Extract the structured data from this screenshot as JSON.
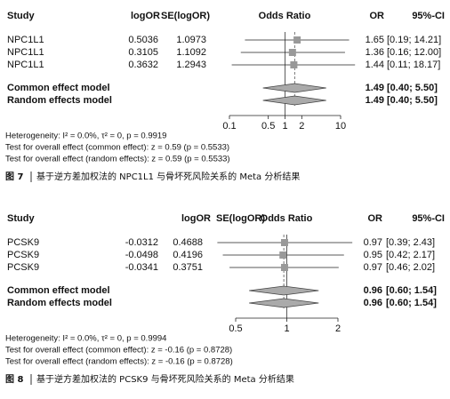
{
  "chart_data": [
    {
      "type": "forest",
      "columns": [
        "Study",
        "logOR",
        "SE(logOR)",
        "Odds Ratio",
        "OR",
        "95%-CI"
      ],
      "studies": [
        {
          "name": "NPC1L1",
          "logOR": 0.5036,
          "se": 1.0973,
          "or": 1.65,
          "ci": [
            0.19,
            14.21
          ],
          "ci_label": "[0.19; 14.21]"
        },
        {
          "name": "NPC1L1",
          "logOR": 0.3105,
          "se": 1.1092,
          "or": 1.36,
          "ci": [
            0.16,
            12
          ],
          "ci_label": "[0.16; 12.00]"
        },
        {
          "name": "NPC1L1",
          "logOR": 0.3632,
          "se": 1.2943,
          "or": 1.44,
          "ci": [
            0.11,
            18.17
          ],
          "ci_label": "[0.11; 18.17]"
        }
      ],
      "summaries": [
        {
          "name": "Common effect model",
          "or": 1.49,
          "ci": [
            0.4,
            5.5
          ],
          "ci_label": "[0.40;  5.50]"
        },
        {
          "name": "Random effects model",
          "or": 1.49,
          "ci": [
            0.4,
            5.5
          ],
          "ci_label": "[0.40;  5.50]"
        }
      ],
      "log_x": true,
      "xlim": [
        0.1,
        10
      ],
      "xticks": [
        0.1,
        0.5,
        1,
        2,
        10
      ],
      "heterogeneity": "Heterogeneity: I² = 0.0%, τ² = 0, p = 0.9919",
      "tests": [
        "Test for overall effect (common effect): z = 0.59 (p = 0.5533)",
        "Test for overall effect (random effects): z = 0.59 (p = 0.5533)"
      ],
      "caption": {
        "label": "图 7",
        "text": "基于逆方差加权法的 NPC1L1 与骨坏死风险关系的 Meta 分析结果"
      }
    },
    {
      "type": "forest",
      "columns": [
        "Study",
        "logOR",
        "SE(logOR)",
        "Odds Ratio",
        "OR",
        "95%-CI"
      ],
      "studies": [
        {
          "name": "PCSK9",
          "logOR": -0.0312,
          "se": 0.4688,
          "or": 0.97,
          "ci": [
            0.39,
            2.43
          ],
          "ci_label": "[0.39; 2.43]"
        },
        {
          "name": "PCSK9",
          "logOR": -0.0498,
          "se": 0.4196,
          "or": 0.95,
          "ci": [
            0.42,
            2.17
          ],
          "ci_label": "[0.42; 2.17]"
        },
        {
          "name": "PCSK9",
          "logOR": -0.0341,
          "se": 0.3751,
          "or": 0.97,
          "ci": [
            0.46,
            2.02
          ],
          "ci_label": "[0.46; 2.02]"
        }
      ],
      "summaries": [
        {
          "name": "Common effect model",
          "or": 0.96,
          "ci": [
            0.6,
            1.54
          ],
          "ci_label": "[0.60; 1.54]"
        },
        {
          "name": "Random effects model",
          "or": 0.96,
          "ci": [
            0.6,
            1.54
          ],
          "ci_label": "[0.60; 1.54]"
        }
      ],
      "log_x": true,
      "xlim": [
        0.5,
        2
      ],
      "xticks": [
        0.5,
        1,
        2
      ],
      "heterogeneity": "Heterogeneity: I² = 0.0%, τ² = 0, p = 0.9994",
      "tests": [
        "Test for overall effect (common effect): z = -0.16 (p = 0.8728)",
        "Test for overall effect (random effects): z = -0.16 (p = 0.8728)"
      ],
      "caption": {
        "label": "图 8",
        "text": "基于逆方差加权法的 PCSK9 与骨坏死风险关系的 Meta 分析结果"
      }
    }
  ]
}
